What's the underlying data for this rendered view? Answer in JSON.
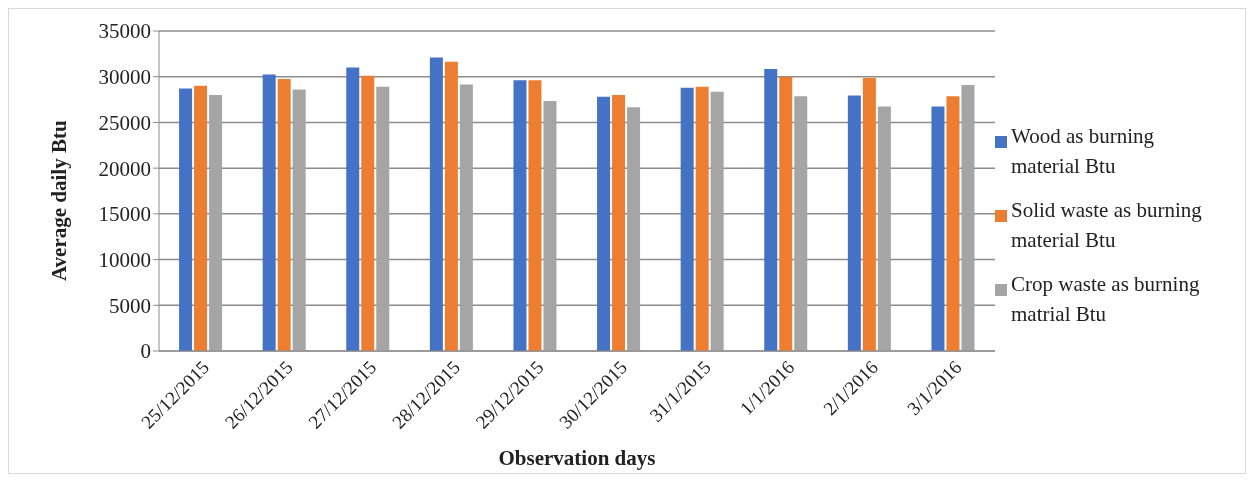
{
  "chart_data": {
    "type": "bar",
    "xlabel": "Observation days",
    "ylabel": "Average   daily Btu",
    "categories": [
      "25/12/2015",
      "26/12/2015",
      "27/12/2015",
      "28/12/2015",
      "29/12/2015",
      "30/12/2015",
      "31/1/2015",
      "1/1/2016",
      "2/1/2016",
      "3/1/2016"
    ],
    "series": [
      {
        "name": "Wood as burning material Btu",
        "color": "#4472c4",
        "values": [
          28700,
          30250,
          31000,
          32100,
          29600,
          27800,
          28800,
          30850,
          27950,
          26750
        ]
      },
      {
        "name": "Solid waste as burning material Btu",
        "color": "#ed7d31",
        "values": [
          29000,
          29750,
          30100,
          31650,
          29600,
          28000,
          28900,
          30000,
          29850,
          27850
        ]
      },
      {
        "name": "Crop waste as burning matrial Btu",
        "color": "#a5a5a5",
        "values": [
          28000,
          28600,
          28900,
          29150,
          27350,
          26650,
          28350,
          27850,
          26750,
          29100
        ]
      }
    ],
    "ylim": [
      0,
      35000
    ],
    "yticks": [
      0,
      5000,
      10000,
      15000,
      20000,
      25000,
      30000,
      35000
    ],
    "grid": "y",
    "legend": "right"
  }
}
